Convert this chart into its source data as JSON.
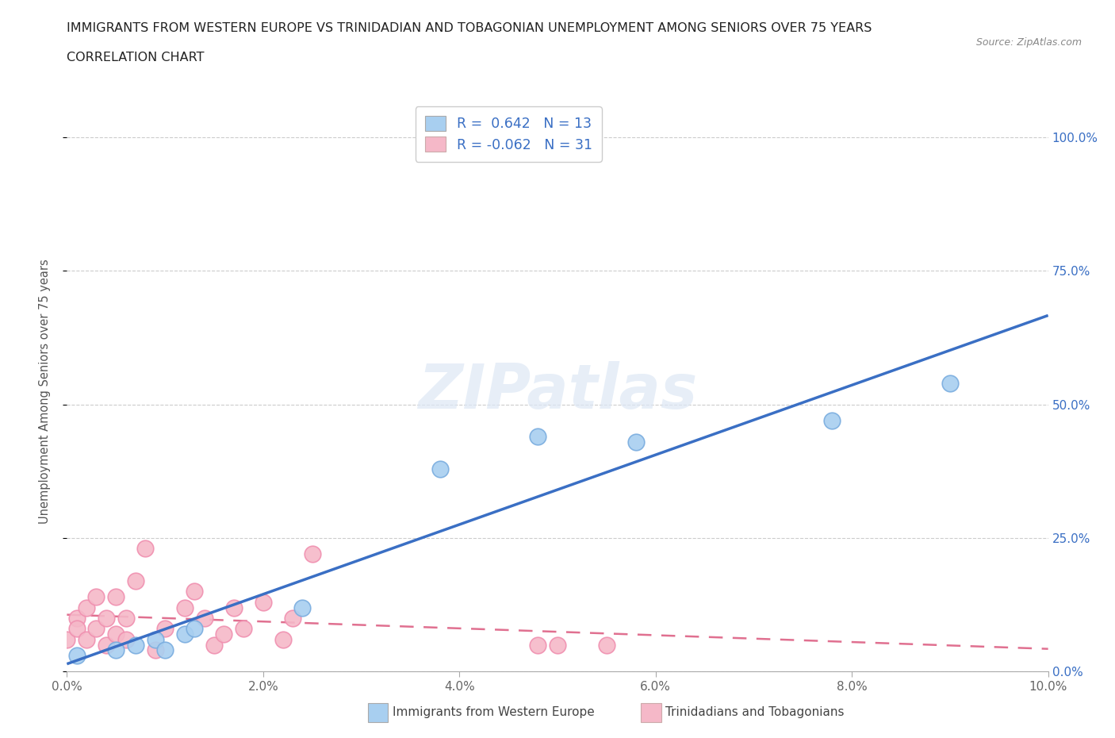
{
  "title_line1": "IMMIGRANTS FROM WESTERN EUROPE VS TRINIDADIAN AND TOBAGONIAN UNEMPLOYMENT AMONG SENIORS OVER 75 YEARS",
  "title_line2": "CORRELATION CHART",
  "source": "Source: ZipAtlas.com",
  "ylabel": "Unemployment Among Seniors over 75 years",
  "xlim": [
    0.0,
    0.1
  ],
  "ylim": [
    0.0,
    1.05
  ],
  "xticks": [
    0.0,
    0.02,
    0.04,
    0.06,
    0.08,
    0.1
  ],
  "xtick_labels": [
    "0.0%",
    "2.0%",
    "4.0%",
    "6.0%",
    "8.0%",
    "10.0%"
  ],
  "yticks": [
    0.0,
    0.25,
    0.5,
    0.75,
    1.0
  ],
  "ytick_labels": [
    "0.0%",
    "25.0%",
    "50.0%",
    "75.0%",
    "100.0%"
  ],
  "blue_R": 0.642,
  "blue_N": 13,
  "pink_R": -0.062,
  "pink_N": 31,
  "blue_color": "#a8cff0",
  "pink_color": "#f5b8c8",
  "blue_edge_color": "#7aaddf",
  "pink_edge_color": "#f090b0",
  "blue_line_color": "#3a6fc4",
  "pink_line_color": "#e07090",
  "watermark": "ZIPatlas",
  "blue_x": [
    0.001,
    0.005,
    0.007,
    0.009,
    0.01,
    0.012,
    0.013,
    0.024,
    0.038,
    0.048,
    0.058,
    0.078,
    0.09
  ],
  "blue_y": [
    0.03,
    0.04,
    0.05,
    0.06,
    0.04,
    0.07,
    0.08,
    0.12,
    0.38,
    0.44,
    0.43,
    0.47,
    0.54
  ],
  "pink_x": [
    0.0,
    0.001,
    0.001,
    0.002,
    0.002,
    0.003,
    0.003,
    0.004,
    0.004,
    0.005,
    0.005,
    0.006,
    0.006,
    0.007,
    0.008,
    0.009,
    0.01,
    0.012,
    0.013,
    0.014,
    0.015,
    0.016,
    0.017,
    0.018,
    0.02,
    0.022,
    0.023,
    0.025,
    0.048,
    0.05,
    0.055
  ],
  "pink_y": [
    0.06,
    0.1,
    0.08,
    0.12,
    0.06,
    0.14,
    0.08,
    0.1,
    0.05,
    0.14,
    0.07,
    0.1,
    0.06,
    0.17,
    0.23,
    0.04,
    0.08,
    0.12,
    0.15,
    0.1,
    0.05,
    0.07,
    0.12,
    0.08,
    0.13,
    0.06,
    0.1,
    0.22,
    0.05,
    0.05,
    0.05
  ],
  "legend_label_blue": "R =  0.642   N = 13",
  "legend_label_pink": "R = -0.062   N = 31"
}
